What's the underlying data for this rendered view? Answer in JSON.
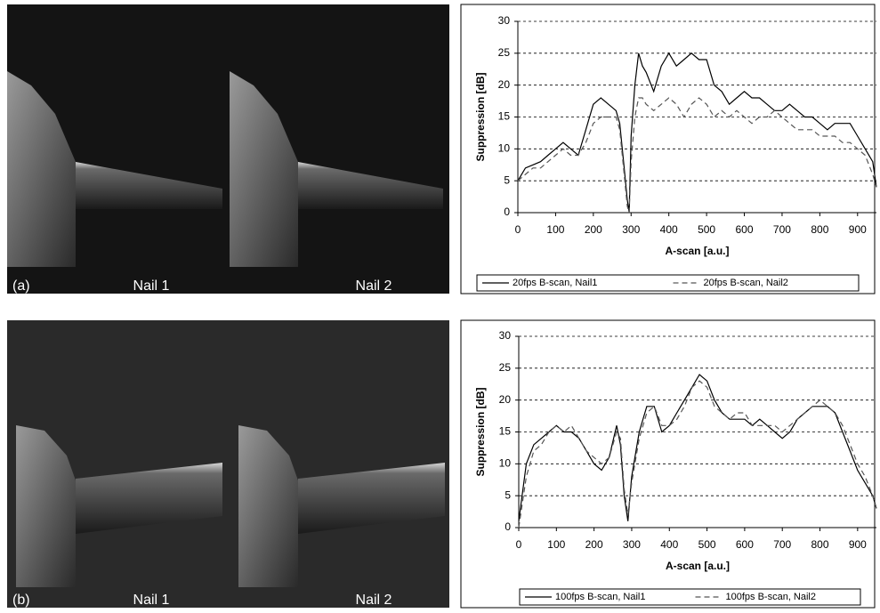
{
  "panels": [
    {
      "label": "(a)",
      "nails": [
        "Nail 1",
        "Nail 2"
      ]
    },
    {
      "label": "(b)",
      "nails": [
        "Nail 1",
        "Nail 2"
      ]
    }
  ],
  "chart_data": [
    {
      "type": "line",
      "xlabel": "A-scan [a.u.]",
      "ylabel": "Suppression [dB]",
      "xlim": [
        0,
        950
      ],
      "xticks": [
        0,
        100,
        200,
        300,
        400,
        500,
        600,
        700,
        800,
        900
      ],
      "ylim": [
        0,
        30
      ],
      "yticks": [
        0,
        5,
        10,
        15,
        20,
        25,
        30
      ],
      "grid": true,
      "legend": "bottom",
      "x": [
        0,
        20,
        40,
        60,
        80,
        100,
        120,
        140,
        160,
        180,
        200,
        220,
        240,
        260,
        270,
        280,
        290,
        295,
        300,
        310,
        320,
        330,
        340,
        360,
        380,
        400,
        420,
        440,
        460,
        480,
        500,
        520,
        540,
        560,
        580,
        600,
        620,
        640,
        660,
        680,
        700,
        720,
        740,
        760,
        780,
        800,
        820,
        840,
        860,
        880,
        900,
        920,
        940,
        950
      ],
      "series": [
        {
          "name": "20fps B-scan, Nail1",
          "color": "#000000",
          "style": "solid",
          "values": [
            5,
            7,
            7.5,
            8,
            9,
            10,
            11,
            10,
            9,
            13,
            17,
            18,
            17,
            16,
            14,
            8,
            2,
            0,
            12,
            20,
            25,
            23,
            22,
            19,
            23,
            25,
            23,
            24,
            25,
            24,
            24,
            20,
            19,
            17,
            18,
            19,
            18,
            18,
            17,
            16,
            16,
            17,
            16,
            15,
            15,
            14,
            13,
            14,
            14,
            14,
            12,
            10,
            8,
            4
          ]
        },
        {
          "name": "20fps B-scan, Nail2",
          "color": "#555555",
          "style": "dashed",
          "values": [
            5,
            6,
            7,
            7,
            8,
            9,
            10,
            9,
            9,
            11,
            14,
            15,
            15,
            15,
            13,
            7,
            1,
            0,
            8,
            15,
            18,
            18,
            17,
            16,
            17,
            18,
            17,
            15,
            17,
            18,
            17,
            15,
            16,
            15,
            16,
            15,
            14,
            15,
            15,
            16,
            15,
            14,
            13,
            13,
            13,
            12,
            12,
            12,
            11,
            11,
            10,
            9,
            6,
            4
          ]
        }
      ]
    },
    {
      "type": "line",
      "xlabel": "A-scan [a.u.]",
      "ylabel": "Suppression [dB]",
      "xlim": [
        0,
        950
      ],
      "xticks": [
        0,
        100,
        200,
        300,
        400,
        500,
        600,
        700,
        800,
        900
      ],
      "ylim": [
        0,
        30
      ],
      "yticks": [
        0,
        5,
        10,
        15,
        20,
        25,
        30
      ],
      "grid": true,
      "legend": "bottom",
      "x": [
        0,
        20,
        40,
        60,
        80,
        100,
        120,
        140,
        160,
        180,
        200,
        220,
        240,
        260,
        270,
        280,
        290,
        300,
        320,
        340,
        360,
        380,
        400,
        420,
        440,
        460,
        480,
        500,
        520,
        540,
        560,
        580,
        600,
        620,
        640,
        660,
        680,
        700,
        720,
        740,
        760,
        780,
        800,
        820,
        840,
        860,
        880,
        900,
        920,
        940,
        950
      ],
      "series": [
        {
          "name": "100fps B-scan, Nail1",
          "color": "#000000",
          "style": "solid",
          "values": [
            1,
            10,
            13,
            14,
            15,
            16,
            15,
            15,
            14,
            12,
            10,
            9,
            11,
            16,
            13,
            5,
            1,
            8,
            15,
            19,
            19,
            15,
            16,
            18,
            20,
            22,
            24,
            23,
            20,
            18,
            17,
            17,
            17,
            16,
            17,
            16,
            15,
            14,
            15,
            17,
            18,
            19,
            19,
            19,
            18,
            15,
            12,
            9,
            7,
            5,
            3
          ]
        },
        {
          "name": "100fps B-scan, Nail2",
          "color": "#555555",
          "style": "dashed",
          "values": [
            0,
            8,
            12,
            13,
            15,
            16,
            15,
            16,
            14,
            12,
            11,
            10,
            11,
            15,
            14,
            6,
            2,
            7,
            14,
            18,
            19,
            16,
            16,
            17,
            19,
            22,
            23,
            22,
            19,
            18,
            17,
            18,
            18,
            16,
            16,
            16,
            16,
            15,
            16,
            17,
            18,
            19,
            20,
            19,
            18,
            16,
            13,
            10,
            8,
            5,
            3
          ]
        }
      ]
    }
  ]
}
